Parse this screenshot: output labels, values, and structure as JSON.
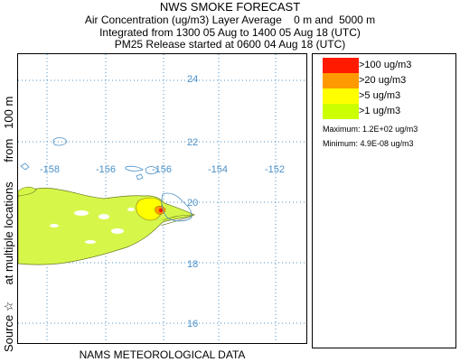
{
  "header": {
    "title": "NWS SMOKE FORECAST",
    "line1": "Air Concentration (ug/m3) Layer Average    0 m and  5000 m",
    "line2": "Integrated from 1300 05 Aug to 1400 05 Aug 18 (UTC)",
    "line3": "PM25 Release started at 0600 04 Aug 18 (UTC)"
  },
  "map": {
    "side_caption": "Source ☆     at multiple locations      from   100 m",
    "bottom_caption": "NAMS METEOROLOGICAL DATA",
    "lat_labels": [
      "24",
      "22",
      "20",
      "18",
      "16"
    ],
    "lon_labels": [
      "-158",
      "-156",
      "-156",
      "-154",
      "-152"
    ],
    "grid_color": "#4a90c8",
    "label_color": "#4a90c8"
  },
  "legend": {
    "items": [
      {
        "label": ">100 ug/m3",
        "color": "#ff1a00"
      },
      {
        "label": ">20 ug/m3",
        "color": "#ff9900"
      },
      {
        "label": ">5 ug/m3",
        "color": "#ffff00"
      },
      {
        "label": ">1 ug/m3",
        "color": "#ccff00"
      }
    ],
    "maximum": "Maximum: 1.2E+02 ug/m3",
    "minimum": "Minimum: 4.9E-08 ug/m3"
  }
}
